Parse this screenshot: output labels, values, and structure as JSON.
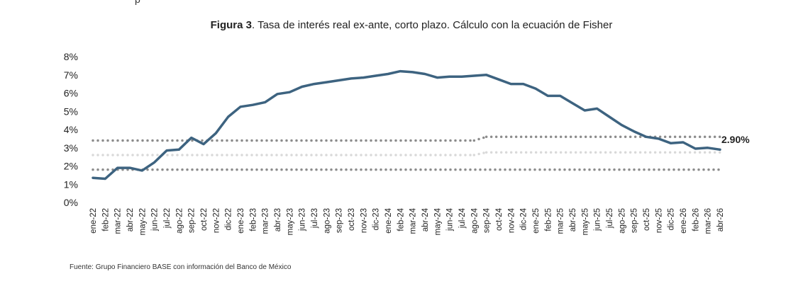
{
  "top_fragment": "p",
  "title_bold": "Figura 3",
  "title_rest": ". Tasa de interés real ex-ante, corto plazo. Cálculo con la ecuación de Fisher",
  "source": "Fuente: Grupo Financiero BASE con información del Banco de México",
  "chart_data": {
    "type": "line",
    "title": "Figura 3. Tasa de interés real ex-ante, corto plazo. Cálculo con la ecuación de Fisher",
    "xlabel": "",
    "ylabel": "",
    "ylim": [
      0,
      8
    ],
    "yticks": [
      "0%",
      "1%",
      "2%",
      "3%",
      "4%",
      "5%",
      "6%",
      "7%",
      "8%"
    ],
    "grid": false,
    "legend": "none",
    "categories": [
      "ene-22",
      "feb-22",
      "mar-22",
      "abr-22",
      "may-22",
      "jun-22",
      "jul-22",
      "ago-22",
      "sep-22",
      "oct-22",
      "nov-22",
      "dic-22",
      "ene-23",
      "feb-23",
      "mar-23",
      "abr-23",
      "may-23",
      "jun-23",
      "jul-23",
      "ago-23",
      "sep-23",
      "oct-23",
      "nov-23",
      "dic-23",
      "ene-24",
      "feb-24",
      "mar-24",
      "abr-24",
      "may-24",
      "jun-24",
      "jul-24",
      "ago-24",
      "sep-24",
      "oct-24",
      "nov-24",
      "dic-24",
      "ene-25",
      "feb-25",
      "mar-25",
      "abr-25",
      "may-25",
      "jun-25",
      "jul-25",
      "ago-25",
      "sep-25",
      "oct-25",
      "nov-25",
      "dic-25",
      "ene-26",
      "feb-26",
      "mar-26",
      "abr-26"
    ],
    "series": [
      {
        "values": [
          1.35,
          1.3,
          1.9,
          1.9,
          1.75,
          2.2,
          2.85,
          2.9,
          3.55,
          3.2,
          3.8,
          4.7,
          5.25,
          5.35,
          5.5,
          5.95,
          6.05,
          6.35,
          6.5,
          6.6,
          6.7,
          6.8,
          6.85,
          6.95,
          7.05,
          7.2,
          7.15,
          7.05,
          6.85,
          6.9,
          6.9,
          6.95,
          7.0,
          6.75,
          6.5,
          6.5,
          6.25,
          5.85,
          5.85,
          5.45,
          5.05,
          5.15,
          4.7,
          4.25,
          3.9,
          3.6,
          3.5,
          3.25,
          3.3,
          2.95,
          3.0,
          2.9
        ],
        "color": "#3d6380"
      }
    ],
    "reference_lines": [
      {
        "color": "#8c8c8c",
        "segments": [
          {
            "from": "ene-22",
            "to": "ago-24",
            "value": 3.4
          },
          {
            "from": "sep-24",
            "to": "abr-26",
            "value": 3.6
          }
        ]
      },
      {
        "color": "#d9d9d9",
        "segments": [
          {
            "from": "ene-22",
            "to": "ago-24",
            "value": 2.6
          },
          {
            "from": "sep-24",
            "to": "abr-26",
            "value": 2.75
          }
        ]
      },
      {
        "color": "#8c8c8c",
        "segments": [
          {
            "from": "ene-22",
            "to": "abr-26",
            "value": 1.8
          }
        ]
      }
    ],
    "annotations": [
      {
        "text": "2.90%",
        "at": "abr-26",
        "value": 2.9
      }
    ]
  }
}
